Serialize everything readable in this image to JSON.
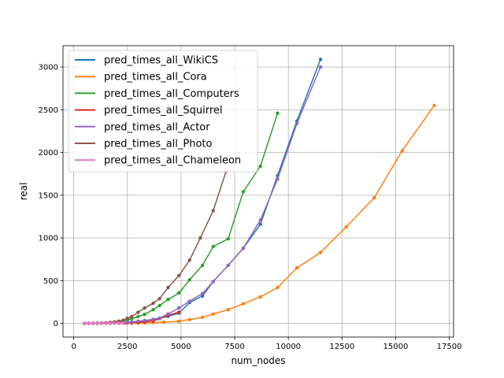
{
  "chart_data": {
    "type": "line",
    "title": "",
    "xlabel": "num_nodes",
    "ylabel": "real",
    "xlim": [
      -500,
      17700
    ],
    "ylim": [
      -160,
      3250
    ],
    "xticks": [
      0,
      2500,
      5000,
      7500,
      10000,
      12500,
      15000,
      17500
    ],
    "yticks": [
      0,
      500,
      1000,
      1500,
      2000,
      2500,
      3000
    ],
    "grid": true,
    "legend_position": "top-left",
    "series": [
      {
        "name": "pred_times_all_WikiCS",
        "color": "#1f77b4",
        "x": [
          500,
          700,
          900,
          1100,
          1300,
          1500,
          1700,
          1900,
          2100,
          2300,
          2500,
          2700,
          3000,
          3300,
          3700,
          4000,
          4400,
          4900,
          5400,
          6000,
          6500,
          7200,
          7900,
          8700,
          9500,
          10400,
          11500
        ],
        "y": [
          0,
          0,
          1,
          1,
          2,
          3,
          4,
          6,
          8,
          10,
          13,
          17,
          24,
          33,
          46,
          60,
          82,
          120,
          245,
          320,
          490,
          680,
          880,
          1160,
          1730,
          2370,
          3090
        ]
      },
      {
        "name": "pred_times_all_Cora",
        "color": "#ff7f0e",
        "x": [
          500,
          700,
          900,
          1100,
          1300,
          1500,
          1700,
          1900,
          2100,
          2400,
          2700,
          3000,
          3300,
          3700,
          4200,
          4900,
          5400,
          6000,
          6500,
          7200,
          7900,
          8700,
          9500,
          10400,
          11500,
          12700,
          14000,
          15300,
          16800
        ],
        "y": [
          0,
          0,
          0,
          0,
          0,
          0,
          0,
          1,
          1,
          2,
          3,
          4,
          6,
          9,
          14,
          25,
          45,
          70,
          110,
          160,
          230,
          310,
          420,
          650,
          830,
          1130,
          1470,
          2020,
          2550
        ]
      },
      {
        "name": "pred_times_all_Computers",
        "color": "#2ca02c",
        "x": [
          500,
          700,
          900,
          1100,
          1300,
          1500,
          1700,
          1900,
          2100,
          2300,
          2500,
          2700,
          3000,
          3300,
          3700,
          4000,
          4400,
          4900,
          5400,
          6000,
          6500,
          7200,
          7900,
          8700,
          9500
        ],
        "y": [
          0,
          0,
          1,
          2,
          3,
          5,
          8,
          12,
          18,
          26,
          40,
          55,
          80,
          105,
          160,
          210,
          280,
          355,
          510,
          680,
          900,
          990,
          1540,
          1840,
          2460
        ]
      },
      {
        "name": "pred_times_all_Squirrel",
        "color": "#d62728",
        "x": [
          500,
          700,
          900,
          1100,
          1300,
          1500,
          1700,
          1900,
          2100,
          2300,
          2500,
          2700,
          3000,
          3300,
          3700,
          4000,
          4400,
          4900
        ],
        "y": [
          0,
          0,
          0,
          1,
          1,
          2,
          2,
          3,
          4,
          5,
          6,
          8,
          12,
          18,
          30,
          55,
          95,
          130
        ]
      },
      {
        "name": "pred_times_all_Actor",
        "color": "#9467bd",
        "x": [
          500,
          700,
          900,
          1100,
          1300,
          1500,
          1700,
          1900,
          2100,
          2300,
          2500,
          2700,
          3000,
          3300,
          3700,
          4000,
          4400,
          4900,
          5400,
          6000,
          6500,
          7200,
          7900,
          8700,
          9500,
          10400,
          11500
        ],
        "y": [
          0,
          0,
          1,
          1,
          2,
          3,
          4,
          6,
          8,
          10,
          13,
          17,
          24,
          33,
          48,
          62,
          110,
          180,
          260,
          350,
          490,
          680,
          880,
          1210,
          1690,
          2340,
          3000
        ]
      },
      {
        "name": "pred_times_all_Photo",
        "color": "#8c564b",
        "x": [
          500,
          700,
          900,
          1100,
          1300,
          1500,
          1700,
          1900,
          2100,
          2300,
          2500,
          2700,
          3000,
          3300,
          3700,
          4000,
          4400,
          4900,
          5400,
          5900,
          6500,
          7100
        ],
        "y": [
          0,
          1,
          2,
          3,
          5,
          8,
          12,
          18,
          26,
          36,
          60,
          80,
          130,
          180,
          235,
          290,
          420,
          560,
          740,
          1000,
          1320,
          1780
        ]
      },
      {
        "name": "pred_times_all_Chameleon",
        "color": "#e377c2",
        "x": [
          500,
          700,
          900,
          1100,
          1300,
          1500,
          1700,
          1900,
          2100,
          2300
        ],
        "y": [
          0,
          0,
          0,
          0,
          1,
          1,
          1,
          2,
          2,
          3
        ]
      }
    ]
  }
}
